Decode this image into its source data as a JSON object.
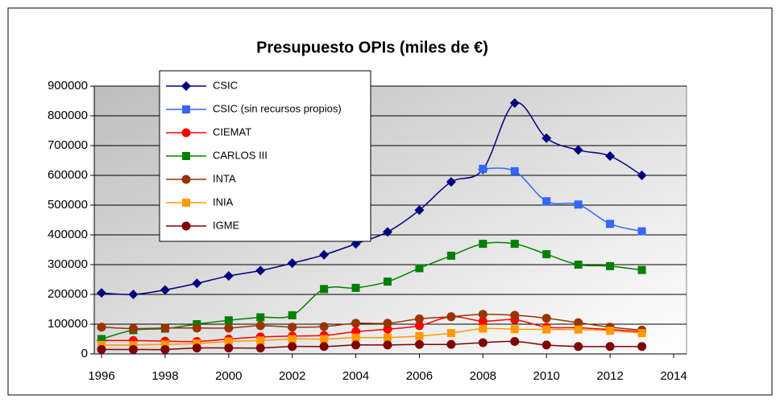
{
  "chart_data": {
    "type": "line",
    "title": "Presupuesto OPIs (miles de €)",
    "x": [
      1996,
      1997,
      1998,
      1999,
      2000,
      2001,
      2002,
      2003,
      2004,
      2005,
      2006,
      2007,
      2008,
      2009,
      2010,
      2011,
      2012,
      2013
    ],
    "xlim": [
      1996,
      2014
    ],
    "xticks": [
      1996,
      1998,
      2000,
      2002,
      2004,
      2006,
      2008,
      2010,
      2012,
      2014
    ],
    "ylim": [
      0,
      900000
    ],
    "yticks": [
      0,
      100000,
      200000,
      300000,
      400000,
      500000,
      600000,
      700000,
      800000,
      900000
    ],
    "grid": true,
    "smooth": true,
    "series": [
      {
        "name": "CSIC",
        "color": "#000080",
        "marker": "diamond",
        "values": [
          205000,
          200000,
          215000,
          237000,
          262000,
          280000,
          305000,
          333000,
          370000,
          410000,
          483000,
          578000,
          620000,
          843000,
          725000,
          685000,
          665000,
          600000
        ]
      },
      {
        "name": "CSIC (sin recursos propios)",
        "color": "#3366ff",
        "marker": "square",
        "values": [
          null,
          null,
          null,
          null,
          null,
          null,
          null,
          null,
          null,
          null,
          null,
          null,
          622000,
          614000,
          513000,
          502000,
          437000,
          412000
        ]
      },
      {
        "name": "CIEMAT",
        "color": "#ff0000",
        "marker": "circle",
        "values": [
          45000,
          45000,
          43000,
          42000,
          50000,
          57000,
          60000,
          62000,
          75000,
          83000,
          95000,
          125000,
          110000,
          115000,
          90000,
          88000,
          82000,
          75000
        ]
      },
      {
        "name": "CARLOS III",
        "color": "#008000",
        "marker": "square",
        "values": [
          50000,
          80000,
          85000,
          100000,
          113000,
          123000,
          130000,
          218000,
          222000,
          243000,
          288000,
          330000,
          370000,
          370000,
          335000,
          300000,
          295000,
          282000
        ]
      },
      {
        "name": "INTA",
        "color": "#993300",
        "marker": "circle",
        "values": [
          90000,
          85000,
          87000,
          87000,
          87000,
          95000,
          90000,
          92000,
          103000,
          103000,
          118000,
          125000,
          133000,
          130000,
          120000,
          105000,
          90000,
          80000
        ]
      },
      {
        "name": "INIA",
        "color": "#ff9900",
        "marker": "square",
        "values": [
          30000,
          30000,
          32000,
          35000,
          42000,
          45000,
          50000,
          50000,
          55000,
          55000,
          60000,
          70000,
          85000,
          83000,
          82000,
          82000,
          78000,
          70000
        ]
      },
      {
        "name": "IGME",
        "color": "#800000",
        "marker": "circle",
        "values": [
          15000,
          15000,
          15000,
          20000,
          20000,
          20000,
          25000,
          25000,
          30000,
          30000,
          32000,
          32000,
          38000,
          42000,
          30000,
          25000,
          25000,
          25000
        ]
      }
    ]
  }
}
